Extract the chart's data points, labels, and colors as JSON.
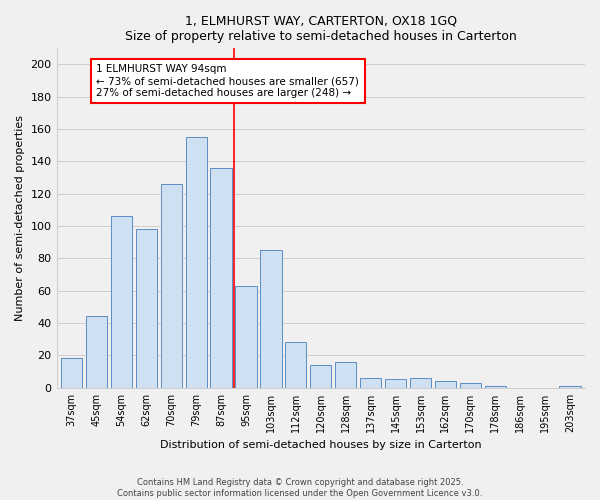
{
  "title1": "1, ELMHURST WAY, CARTERTON, OX18 1GQ",
  "title2": "Size of property relative to semi-detached houses in Carterton",
  "xlabel": "Distribution of semi-detached houses by size in Carterton",
  "ylabel": "Number of semi-detached properties",
  "categories": [
    "37sqm",
    "45sqm",
    "54sqm",
    "62sqm",
    "70sqm",
    "79sqm",
    "87sqm",
    "95sqm",
    "103sqm",
    "112sqm",
    "120sqm",
    "128sqm",
    "137sqm",
    "145sqm",
    "153sqm",
    "162sqm",
    "170sqm",
    "178sqm",
    "186sqm",
    "195sqm",
    "203sqm"
  ],
  "values": [
    18,
    44,
    106,
    98,
    126,
    155,
    136,
    63,
    85,
    28,
    14,
    16,
    6,
    5,
    6,
    4,
    3,
    1,
    0,
    0,
    1
  ],
  "bar_color": "#cfe0f3",
  "bar_edge_color": "#5b8ec4",
  "vline_label": "1 ELMHURST WAY 94sqm",
  "annotation_line1": "← 73% of semi-detached houses are smaller (657)",
  "annotation_line2": "27% of semi-detached houses are larger (248) →",
  "ylim": [
    0,
    210
  ],
  "yticks": [
    0,
    20,
    40,
    60,
    80,
    100,
    120,
    140,
    160,
    180,
    200
  ],
  "footer1": "Contains HM Land Registry data © Crown copyright and database right 2025.",
  "footer2": "Contains public sector information licensed under the Open Government Licence v3.0.",
  "bg_color": "#f0f0f0"
}
